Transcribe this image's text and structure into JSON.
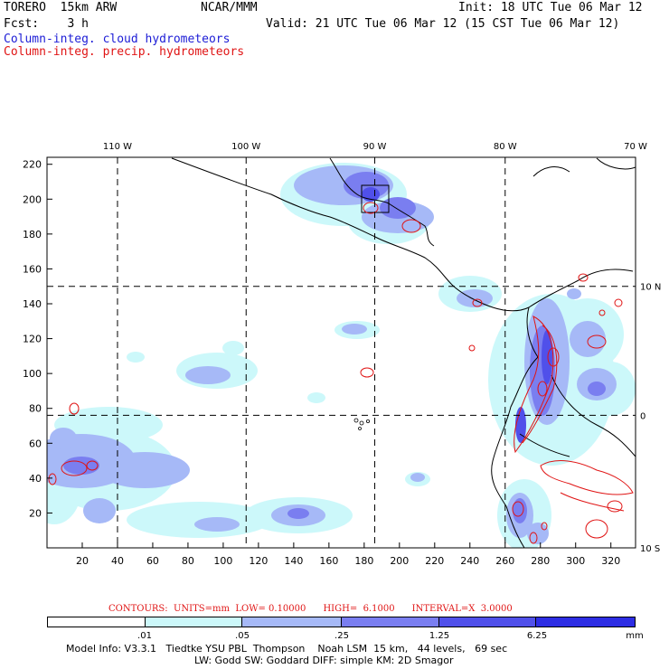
{
  "header": {
    "model": "TORERO  15km ARW",
    "org": "NCAR/MMM",
    "init": "Init: 18 UTC Tue 06 Mar 12",
    "fcst": "Fcst:    3 h",
    "valid": "Valid: 21 UTC Tue 06 Mar 12 (15 CST Tue 06 Mar 12)",
    "field1": "Column-integ. cloud hydrometeors",
    "field2": "Column-integ. precip. hydrometeors"
  },
  "colors": {
    "field1": "#1c1cd6",
    "field2": "#e01414",
    "levels": [
      "#ffffff",
      "#ccf8fa",
      "#a6b9f7",
      "#7a7ef0",
      "#5050ea",
      "#2d2de4",
      "#0a0ae0"
    ]
  },
  "chart_data": {
    "type": "heatmap",
    "x_ticks": [
      20,
      40,
      60,
      80,
      100,
      120,
      140,
      160,
      180,
      200,
      220,
      240,
      260,
      280,
      300,
      320
    ],
    "y_ticks": [
      20,
      40,
      60,
      80,
      100,
      120,
      140,
      160,
      180,
      200,
      220
    ],
    "xlim": [
      0,
      334
    ],
    "ylim": [
      0,
      224
    ],
    "lon_labels": [
      "110 W",
      "100 W",
      "90 W",
      "80 W",
      "70 W"
    ],
    "lat_labels": [
      "10 N",
      "0",
      "10 S"
    ],
    "lon_grid_x": [
      40,
      113,
      186,
      260
    ],
    "lat_grid_y": [
      150,
      76
    ]
  },
  "contour_info": {
    "label": "CONTOURS:  UNITS=mm  LOW= 0.10000      HIGH=  6.1000      INTERVAL=X  3.0000"
  },
  "colorbar": {
    "labels": [
      ".01",
      ".05",
      ".25",
      "1.25",
      "6.25"
    ],
    "units": "mm"
  },
  "footer": {
    "line1": "Model Info: V3.3.1   Tiedtke YSU PBL  Thompson    Noah LSM  15 km,   44 levels,   69 sec",
    "line2": "LW: Godd SW: Goddard DIFF: simple KM: 2D Smagor"
  }
}
